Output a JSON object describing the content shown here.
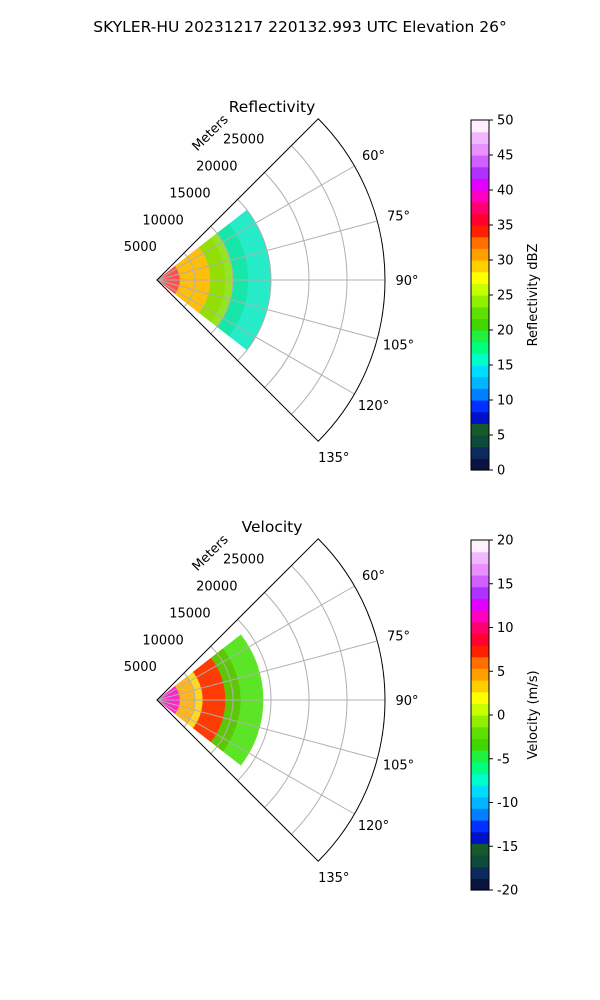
{
  "figure": {
    "suptitle": "SKYLER-HU  20231217  220132.993 UTC Elevation 26°"
  },
  "chart_data": [
    {
      "type": "heatmap",
      "projection": "polar-sector",
      "title": "Reflectivity",
      "range_label": "Meters",
      "range_ticks": [
        5000,
        10000,
        15000,
        20000,
        25000
      ],
      "range_max": 30000,
      "azimuth_range": [
        45,
        135
      ],
      "azimuth_ticks": [
        "60°",
        "75°",
        "90°",
        "105°",
        "120°",
        "135°"
      ],
      "grid": true,
      "colorbar": {
        "label": "Reflectivity dBZ",
        "ticks": [
          0,
          5,
          10,
          15,
          20,
          25,
          30,
          35,
          40,
          45,
          50
        ],
        "vmin": 0,
        "vmax": 50,
        "colors": [
          "#0a1440",
          "#0d2a5c",
          "#0e4a3a",
          "#145a2a",
          "#0010c8",
          "#0030ff",
          "#0080ff",
          "#00b4ff",
          "#00dcff",
          "#00ffc8",
          "#00ff80",
          "#20f040",
          "#40d800",
          "#60e000",
          "#90f000",
          "#c8ff00",
          "#ffff00",
          "#ffd000",
          "#ffa000",
          "#ff7000",
          "#ff2000",
          "#ff0030",
          "#ff0070",
          "#ff00c0",
          "#e000ff",
          "#b030ff",
          "#d060ff",
          "#e890ff",
          "#f0b8ff",
          "#fff0ff"
        ]
      },
      "echo_bands": [
        {
          "r0": 0,
          "r1": 7000,
          "color": "#ff3030"
        },
        {
          "r0": 3000,
          "r1": 9000,
          "color": "#ffd000"
        },
        {
          "r0": 7000,
          "r1": 12000,
          "color": "#80e000"
        },
        {
          "r0": 10000,
          "r1": 15000,
          "color": "#00e8c0"
        }
      ]
    },
    {
      "type": "heatmap",
      "projection": "polar-sector",
      "title": "Velocity",
      "range_label": "Meters",
      "range_ticks": [
        5000,
        10000,
        15000,
        20000,
        25000
      ],
      "range_max": 30000,
      "azimuth_range": [
        45,
        135
      ],
      "azimuth_ticks": [
        "60°",
        "75°",
        "90°",
        "105°",
        "120°",
        "135°"
      ],
      "grid": true,
      "colorbar": {
        "label": "Velocity (m/s)",
        "ticks": [
          -20,
          -15,
          -10,
          -5,
          0,
          5,
          10,
          15,
          20
        ],
        "vmin": -20,
        "vmax": 20,
        "colors": [
          "#0a1440",
          "#0d2a5c",
          "#0e4a3a",
          "#145a2a",
          "#0010c8",
          "#0030ff",
          "#0080ff",
          "#00b4ff",
          "#00dcff",
          "#00ffc8",
          "#00ff80",
          "#20f040",
          "#40d800",
          "#60e000",
          "#90f000",
          "#c8ff00",
          "#ffff00",
          "#ffd000",
          "#ffa000",
          "#ff7000",
          "#ff2000",
          "#ff0030",
          "#ff0070",
          "#ff00c0",
          "#e000ff",
          "#b030ff",
          "#d060ff",
          "#e890ff",
          "#f0b8ff",
          "#fff0ff"
        ]
      },
      "echo_bands": [
        {
          "r0": 0,
          "r1": 5000,
          "color": "#ff00c0"
        },
        {
          "r0": 3000,
          "r1": 9000,
          "color": "#ffd000"
        },
        {
          "r0": 6000,
          "r1": 11000,
          "color": "#ff2000"
        },
        {
          "r0": 9000,
          "r1": 14000,
          "color": "#40e000"
        }
      ]
    }
  ]
}
